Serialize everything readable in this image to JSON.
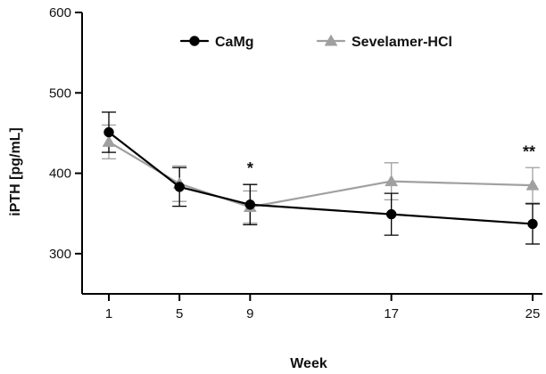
{
  "chart_data": {
    "type": "line",
    "title": "",
    "xlabel": "Week",
    "ylabel": "iPTH [pg/mL]",
    "x": [
      1,
      5,
      9,
      17,
      25
    ],
    "x_tick_labels": [
      "1",
      "5",
      "9",
      "17",
      "25"
    ],
    "ylim": [
      250,
      600
    ],
    "y_ticks": [
      300,
      400,
      500,
      600
    ],
    "y_tick_labels": [
      "300",
      "400",
      "500",
      "600"
    ],
    "grid": false,
    "legend_position": "top",
    "series": [
      {
        "name": "CaMg",
        "values": [
          451,
          383,
          361,
          349,
          337
        ],
        "error": [
          25,
          24,
          25,
          26,
          25
        ],
        "color": "#000000",
        "marker": "circle"
      },
      {
        "name": "Sevelamer-HCl",
        "values": [
          439,
          387,
          358,
          390,
          385
        ],
        "error": [
          21,
          22,
          20,
          23,
          22
        ],
        "color": "#a0a0a0",
        "marker": "triangle"
      }
    ],
    "annotations": [
      {
        "text": "*",
        "x": 9
      },
      {
        "text": "**",
        "x": 25
      }
    ]
  }
}
